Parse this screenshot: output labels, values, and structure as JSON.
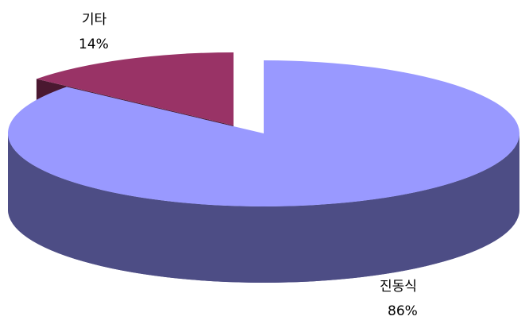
{
  "chart_data": {
    "type": "pie",
    "style": "3d-exploded",
    "slices": [
      {
        "label": "진동식",
        "value": 86,
        "value_label": "86%",
        "top_color": "#9999FF",
        "side_color": "#4D4D85"
      },
      {
        "label": "기타",
        "value": 14,
        "value_label": "14%",
        "top_color": "#993366",
        "side_color": "#4A1830"
      }
    ],
    "legend": "none"
  }
}
